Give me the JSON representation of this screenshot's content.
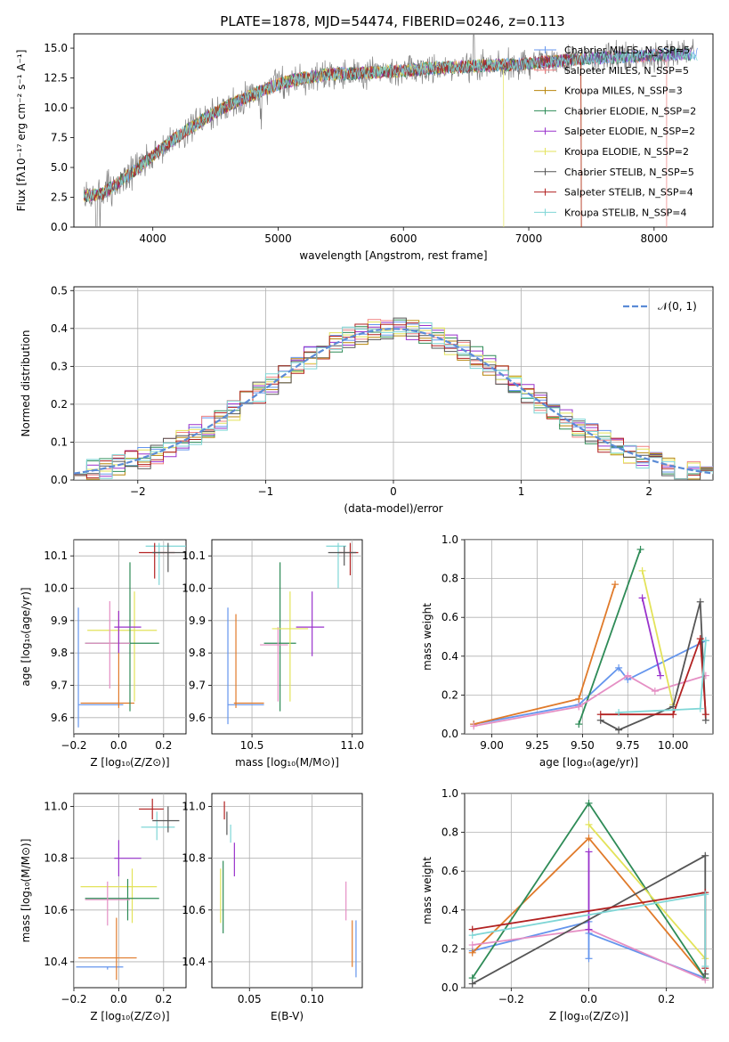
{
  "chart_data": [
    {
      "id": "spectrum",
      "type": "line",
      "title": "PLATE=1878, MJD=54474, FIBERID=0246, z=0.113",
      "xlabel": "wavelength [Angstrom, rest frame]",
      "ylabel": "Flux [fλ10⁻¹⁷ erg cm⁻² s⁻¹ A⁻¹]",
      "xlim": [
        3370,
        8470
      ],
      "ylim": [
        0,
        16.2
      ],
      "xticks": [
        4000,
        5000,
        6000,
        7000,
        8000
      ],
      "yticks": [
        0.0,
        2.5,
        5.0,
        7.5,
        10.0,
        12.5,
        15.0
      ],
      "grid": false,
      "legend_position": "top-right",
      "observed_trend": {
        "x": [
          3450,
          3600,
          3800,
          4000,
          4200,
          4400,
          4600,
          4800,
          5000,
          5200,
          5400,
          5600,
          5800,
          6000,
          6200,
          6400,
          6600,
          6800,
          7000,
          7200,
          7400,
          7600,
          7800,
          8000,
          8200
        ],
        "y": [
          2.6,
          2.8,
          4.3,
          6.0,
          7.6,
          9.0,
          10.2,
          11.1,
          12.0,
          12.5,
          12.8,
          12.9,
          13.0,
          13.1,
          13.3,
          13.4,
          13.5,
          13.6,
          13.7,
          13.9,
          14.1,
          14.2,
          14.3,
          14.4,
          14.5
        ]
      },
      "series": [
        {
          "name": "Chabrier MILES, N_SSP=5",
          "color": "#6495ed"
        },
        {
          "name": "Salpeter MILES, N_SSP=5",
          "color": "#f08080"
        },
        {
          "name": "Kroupa MILES, N_SSP=3",
          "color": "#b8860b"
        },
        {
          "name": "Chabrier ELODIE, N_SSP=2",
          "color": "#2e8b57"
        },
        {
          "name": "Salpeter ELODIE, N_SSP=2",
          "color": "#9932cc"
        },
        {
          "name": "Kroupa ELODIE, N_SSP=2",
          "color": "#e3e35a"
        },
        {
          "name": "Chabrier STELIB, N_SSP=5",
          "color": "#555555"
        },
        {
          "name": "Salpeter STELIB, N_SSP=4",
          "color": "#b22222"
        },
        {
          "name": "Kroupa STELIB, N_SSP=4",
          "color": "#7fd6d6"
        }
      ]
    },
    {
      "id": "residuals",
      "type": "line",
      "xlabel": "(data-model)/error",
      "ylabel": "Normed distribution",
      "xlim": [
        -2.5,
        2.5
      ],
      "ylim": [
        0,
        0.51
      ],
      "xticks": [
        -2,
        -1,
        0,
        1,
        2
      ],
      "yticks": [
        0.0,
        0.1,
        0.2,
        0.3,
        0.4,
        0.5
      ],
      "grid": true,
      "legend_position": "top-right",
      "legend": "𝒩(0, 1)",
      "gaussian": {
        "mean": 0,
        "sigma": 1,
        "color": "#5b8bd6"
      }
    },
    {
      "id": "age_vs_Z",
      "type": "scatter",
      "xlabel": "Z [log₁₀(Z/Z⊙)]",
      "ylabel": "age  [log₁₀(age/yr)]",
      "xlim": [
        -0.2,
        0.3
      ],
      "ylim": [
        9.55,
        10.15
      ],
      "xticks": [
        -0.2,
        0.0,
        0.2
      ],
      "yticks": [
        9.6,
        9.7,
        9.8,
        9.9,
        10.0,
        10.1
      ],
      "grid": true,
      "points": [
        {
          "color": "#6495ed",
          "x": -0.18,
          "y": 9.64,
          "dx": [
            -0.18,
            0.02
          ],
          "dy": [
            9.57,
            9.94
          ]
        },
        {
          "color": "#e07a2a",
          "x": 0.0,
          "y": 9.645,
          "dx": [
            -0.17,
            0.07
          ],
          "dy": [
            9.63,
            9.93
          ]
        },
        {
          "color": "#e3e35a",
          "x": 0.07,
          "y": 9.87,
          "dx": [
            -0.14,
            0.17
          ],
          "dy": [
            9.65,
            9.99
          ]
        },
        {
          "color": "#2e8b57",
          "x": 0.05,
          "y": 9.83,
          "dx": [
            -0.15,
            0.18
          ],
          "dy": [
            9.62,
            10.08
          ]
        },
        {
          "color": "#e58fc4",
          "x": -0.04,
          "y": 9.83,
          "dx": [
            -0.15,
            0.05
          ],
          "dy": [
            9.69,
            9.96
          ]
        },
        {
          "color": "#9932cc",
          "x": 0.0,
          "y": 9.88,
          "dx": [
            -0.02,
            0.1
          ],
          "dy": [
            9.8,
            9.93
          ]
        },
        {
          "color": "#7fd6d6",
          "x": 0.18,
          "y": 10.13,
          "dx": [
            0.12,
            0.3
          ],
          "dy": [
            10.01,
            10.14
          ]
        },
        {
          "color": "#b22222",
          "x": 0.16,
          "y": 10.11,
          "dx": [
            0.09,
            0.25
          ],
          "dy": [
            10.03,
            10.14
          ]
        },
        {
          "color": "#555555",
          "x": 0.22,
          "y": 10.11,
          "dx": [
            0.15,
            0.3
          ],
          "dy": [
            10.05,
            10.14
          ]
        }
      ]
    },
    {
      "id": "age_vs_mass",
      "type": "scatter",
      "xlabel": "mass [log₁₀(M/M⊙)]",
      "ylabel": "",
      "xlim": [
        10.3,
        11.05
      ],
      "ylim": [
        9.55,
        10.15
      ],
      "xticks": [
        10.5,
        11.0
      ],
      "yticks": [
        9.6,
        9.7,
        9.8,
        9.9,
        10.0,
        10.1
      ],
      "grid": true,
      "points": [
        {
          "color": "#6495ed",
          "x": 10.38,
          "y": 9.64,
          "dx": [
            10.38,
            10.56
          ],
          "dy": [
            9.58,
            9.94
          ]
        },
        {
          "color": "#e07a2a",
          "x": 10.42,
          "y": 9.645,
          "dx": [
            10.41,
            10.56
          ],
          "dy": [
            9.63,
            9.92
          ]
        },
        {
          "color": "#2e8b57",
          "x": 10.64,
          "y": 9.83,
          "dx": [
            10.56,
            10.72
          ],
          "dy": [
            9.62,
            10.08
          ]
        },
        {
          "color": "#e58fc4",
          "x": 10.63,
          "y": 9.825,
          "dx": [
            10.54,
            10.68
          ],
          "dy": [
            9.65,
            9.88
          ]
        },
        {
          "color": "#e3e35a",
          "x": 10.69,
          "y": 9.875,
          "dx": [
            10.6,
            10.78
          ],
          "dy": [
            9.65,
            9.99
          ]
        },
        {
          "color": "#9932cc",
          "x": 10.8,
          "y": 9.88,
          "dx": [
            10.72,
            10.86
          ],
          "dy": [
            9.79,
            9.99
          ]
        },
        {
          "color": "#7fd6d6",
          "x": 10.93,
          "y": 10.13,
          "dx": [
            10.87,
            10.97
          ],
          "dy": [
            10.0,
            10.14
          ]
        },
        {
          "color": "#b22222",
          "x": 10.99,
          "y": 10.11,
          "dx": [
            10.93,
            11.03
          ],
          "dy": [
            10.04,
            10.14
          ]
        },
        {
          "color": "#555555",
          "x": 10.96,
          "y": 10.11,
          "dx": [
            10.88,
            11.02
          ],
          "dy": [
            10.07,
            10.13
          ]
        }
      ]
    },
    {
      "id": "weight_vs_age",
      "type": "line",
      "xlabel": "age  [log₁₀(age/yr)]",
      "ylabel": "mass weight",
      "xlim": [
        8.85,
        10.22
      ],
      "ylim": [
        0,
        1.0
      ],
      "xticks": [
        9.0,
        9.25,
        9.5,
        9.75,
        10.0
      ],
      "yticks": [
        0.0,
        0.2,
        0.4,
        0.6,
        0.8,
        1.0
      ],
      "grid": true,
      "series": [
        {
          "color": "#6495ed",
          "x": [
            8.9,
            9.48,
            9.7,
            9.75,
            10.18
          ],
          "y": [
            0.05,
            0.15,
            0.34,
            0.28,
            0.48
          ]
        },
        {
          "color": "#e07a2a",
          "x": [
            8.9,
            9.48,
            9.68
          ],
          "y": [
            0.05,
            0.18,
            0.77
          ]
        },
        {
          "color": "#2e8b57",
          "x": [
            9.48,
            9.82
          ],
          "y": [
            0.05,
            0.95
          ]
        },
        {
          "color": "#e58fc4",
          "x": [
            8.9,
            9.48,
            9.75,
            9.9,
            10.18
          ],
          "y": [
            0.04,
            0.14,
            0.3,
            0.22,
            0.3
          ]
        },
        {
          "color": "#9932cc",
          "x": [
            9.83,
            9.93
          ],
          "y": [
            0.7,
            0.3
          ]
        },
        {
          "color": "#e3e35a",
          "x": [
            9.83,
            10.0
          ],
          "y": [
            0.84,
            0.15
          ]
        },
        {
          "color": "#555555",
          "x": [
            9.6,
            9.7,
            10.0,
            10.15,
            10.18
          ],
          "y": [
            0.07,
            0.02,
            0.14,
            0.68,
            0.07
          ]
        },
        {
          "color": "#b22222",
          "x": [
            9.6,
            10.0,
            10.15,
            10.18
          ],
          "y": [
            0.1,
            0.1,
            0.49,
            0.1
          ]
        },
        {
          "color": "#7fd6d6",
          "x": [
            9.7,
            10.15,
            10.18
          ],
          "y": [
            0.11,
            0.13,
            0.48
          ]
        }
      ]
    },
    {
      "id": "mass_vs_Z",
      "type": "scatter",
      "xlabel": "Z [log₁₀(Z/Z⊙)]",
      "ylabel": "mass [log₁₀(M/M⊙)]",
      "xlim": [
        -0.2,
        0.3
      ],
      "ylim": [
        10.3,
        11.05
      ],
      "xticks": [
        -0.2,
        0.0,
        0.2
      ],
      "yticks": [
        10.4,
        10.6,
        10.8,
        11.0
      ],
      "grid": true,
      "points": [
        {
          "color": "#6495ed",
          "x": -0.05,
          "y": 10.38,
          "dx": [
            -0.19,
            0.02
          ],
          "dy": [
            10.37,
            10.38
          ]
        },
        {
          "color": "#e07a2a",
          "x": -0.01,
          "y": 10.415,
          "dx": [
            -0.18,
            0.08
          ],
          "dy": [
            10.33,
            10.57
          ]
        },
        {
          "color": "#e3e35a",
          "x": 0.06,
          "y": 10.69,
          "dx": [
            -0.17,
            0.17
          ],
          "dy": [
            10.55,
            10.76
          ]
        },
        {
          "color": "#2e8b57",
          "x": 0.04,
          "y": 10.645,
          "dx": [
            -0.15,
            0.18
          ],
          "dy": [
            10.56,
            10.72
          ]
        },
        {
          "color": "#e58fc4",
          "x": -0.05,
          "y": 10.64,
          "dx": [
            -0.15,
            0.05
          ],
          "dy": [
            10.54,
            10.71
          ]
        },
        {
          "color": "#9932cc",
          "x": 0.0,
          "y": 10.8,
          "dx": [
            -0.02,
            0.1
          ],
          "dy": [
            10.73,
            10.87
          ]
        },
        {
          "color": "#7fd6d6",
          "x": 0.17,
          "y": 10.92,
          "dx": [
            0.1,
            0.25
          ],
          "dy": [
            10.87,
            10.98
          ]
        },
        {
          "color": "#b22222",
          "x": 0.15,
          "y": 10.99,
          "dx": [
            0.09,
            0.2
          ],
          "dy": [
            10.95,
            11.03
          ]
        },
        {
          "color": "#555555",
          "x": 0.22,
          "y": 10.945,
          "dx": [
            0.15,
            0.27
          ],
          "dy": [
            10.9,
            11.0
          ]
        }
      ]
    },
    {
      "id": "mass_vs_EBV",
      "type": "scatter",
      "xlabel": "E(B-V)",
      "ylabel": "",
      "xlim": [
        0.02,
        0.14
      ],
      "ylim": [
        10.3,
        11.05
      ],
      "xticks": [
        0.05,
        0.1
      ],
      "yticks": [
        10.4,
        10.6,
        10.8,
        11.0
      ],
      "grid": true,
      "points": [
        {
          "color": "#b22222",
          "x": 0.03,
          "y": 10.99,
          "dx": [
            0.03,
            0.03
          ],
          "dy": [
            10.95,
            11.02
          ]
        },
        {
          "color": "#555555",
          "x": 0.032,
          "y": 10.94,
          "dx": [
            0.032,
            0.032
          ],
          "dy": [
            10.89,
            10.98
          ]
        },
        {
          "color": "#7fd6d6",
          "x": 0.035,
          "y": 10.9,
          "dx": [
            0.035,
            0.035
          ],
          "dy": [
            10.86,
            10.93
          ]
        },
        {
          "color": "#9932cc",
          "x": 0.038,
          "y": 10.8,
          "dx": [
            0.038,
            0.038
          ],
          "dy": [
            10.73,
            10.86
          ]
        },
        {
          "color": "#e3e35a",
          "x": 0.027,
          "y": 10.66,
          "dx": [
            0.027,
            0.027
          ],
          "dy": [
            10.55,
            10.76
          ]
        },
        {
          "color": "#2e8b57",
          "x": 0.029,
          "y": 10.63,
          "dx": [
            0.029,
            0.029
          ],
          "dy": [
            10.51,
            10.79
          ]
        },
        {
          "color": "#e58fc4",
          "x": 0.127,
          "y": 10.62,
          "dx": [
            0.127,
            0.127
          ],
          "dy": [
            10.56,
            10.71
          ]
        },
        {
          "color": "#e07a2a",
          "x": 0.132,
          "y": 10.46,
          "dx": [
            0.132,
            0.132
          ],
          "dy": [
            10.38,
            10.56
          ]
        },
        {
          "color": "#6495ed",
          "x": 0.135,
          "y": 10.44,
          "dx": [
            0.135,
            0.135
          ],
          "dy": [
            10.34,
            10.56
          ]
        }
      ]
    },
    {
      "id": "weight_vs_Z",
      "type": "line",
      "xlabel": "Z [log₁₀(Z/Z⊙)]",
      "ylabel": "mass weight",
      "xlim": [
        -0.32,
        0.32
      ],
      "ylim": [
        0,
        1.0
      ],
      "xticks": [
        -0.2,
        0.0,
        0.2
      ],
      "yticks": [
        0.0,
        0.2,
        0.4,
        0.6,
        0.8,
        1.0
      ],
      "grid": true,
      "series": [
        {
          "color": "#6495ed",
          "x": [
            -0.3,
            0.0,
            0.0,
            0.0,
            0.3
          ],
          "y": [
            0.19,
            0.34,
            0.15,
            0.28,
            0.05
          ]
        },
        {
          "color": "#e07a2a",
          "x": [
            -0.3,
            0.0,
            0.3
          ],
          "y": [
            0.18,
            0.77,
            0.05
          ]
        },
        {
          "color": "#2e8b57",
          "x": [
            -0.3,
            0.0,
            0.3
          ],
          "y": [
            0.05,
            0.95,
            0.05
          ]
        },
        {
          "color": "#e58fc4",
          "x": [
            -0.3,
            0.0,
            0.3
          ],
          "y": [
            0.22,
            0.3,
            0.04
          ]
        },
        {
          "color": "#9932cc",
          "x": [
            0.0,
            0.0
          ],
          "y": [
            0.7,
            0.3
          ]
        },
        {
          "color": "#e3e35a",
          "x": [
            0.0,
            0.3
          ],
          "y": [
            0.84,
            0.15
          ]
        },
        {
          "color": "#555555",
          "x": [
            -0.3,
            0.3,
            0.3
          ],
          "y": [
            0.02,
            0.68,
            0.07
          ]
        },
        {
          "color": "#b22222",
          "x": [
            -0.3,
            0.3,
            0.3
          ],
          "y": [
            0.3,
            0.49,
            0.1
          ]
        },
        {
          "color": "#7fd6d6",
          "x": [
            -0.3,
            0.3,
            0.3
          ],
          "y": [
            0.27,
            0.48,
            0.11
          ]
        }
      ]
    }
  ]
}
